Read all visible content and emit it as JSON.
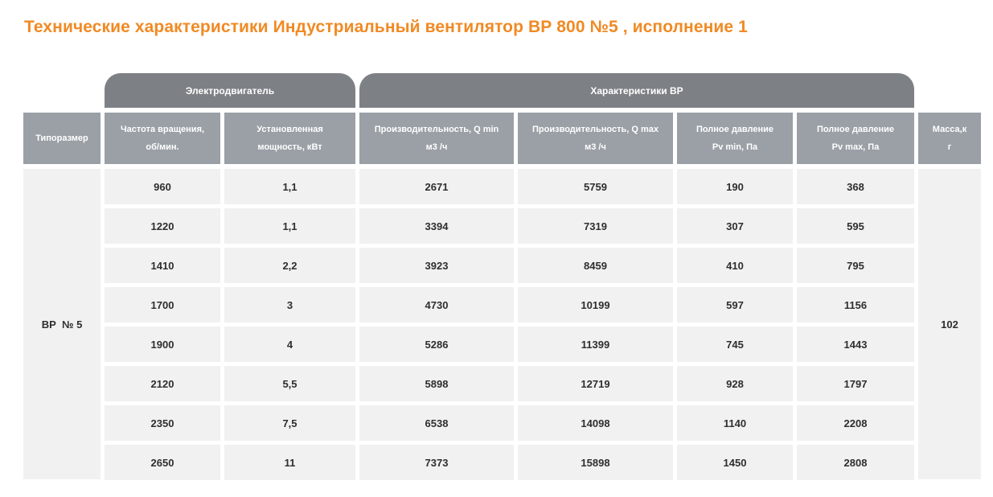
{
  "title": "Технические характеристики Индустриальный вентилятор ВР 800 №5 , исполнение 1",
  "groups": {
    "motor": "Электродвигатель",
    "fan": "Характеристики ВР"
  },
  "headers": {
    "type": "Типоразмер",
    "speed": [
      "Частота вращения,",
      "об/мин."
    ],
    "power": [
      "Установленная",
      "мощность, кВт"
    ],
    "q_min": [
      "Производительность, Q min",
      "м3 /ч"
    ],
    "q_max": [
      "Производительность, Q max",
      "м3 /ч"
    ],
    "pv_min": [
      "Полное давление",
      "Pv min, Па"
    ],
    "pv_max": [
      "Полное давление",
      "Pv max, Па"
    ],
    "mass": [
      "Масса,к",
      "г"
    ]
  },
  "type_value": "ВР  № 5",
  "mass_value": "102",
  "rows": [
    [
      "960",
      "1,1",
      "2671",
      "5759",
      "190",
      "368"
    ],
    [
      "1220",
      "1,1",
      "3394",
      "7319",
      "307",
      "595"
    ],
    [
      "1410",
      "2,2",
      "3923",
      "8459",
      "410",
      "795"
    ],
    [
      "1700",
      "3",
      "4730",
      "10199",
      "597",
      "1156"
    ],
    [
      "1900",
      "4",
      "5286",
      "11399",
      "745",
      "1443"
    ],
    [
      "2120",
      "5,5",
      "5898",
      "12719",
      "928",
      "1797"
    ],
    [
      "2350",
      "7,5",
      "6538",
      "14098",
      "1140",
      "2208"
    ],
    [
      "2650",
      "11",
      "7373",
      "15898",
      "1450",
      "2808"
    ]
  ]
}
